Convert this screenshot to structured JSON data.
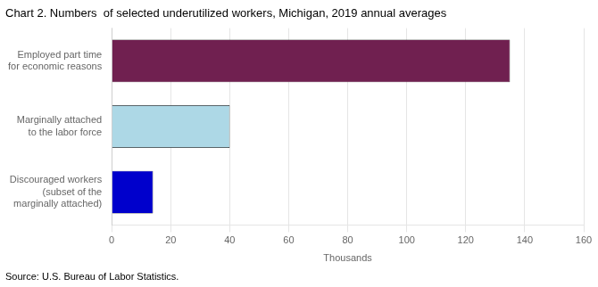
{
  "chart_data": {
    "type": "bar",
    "orientation": "horizontal",
    "title": "Chart 2. Numbers  of selected underutilized workers, Michigan, 2019 annual averages",
    "categories": [
      "Discouraged workers\n(subset of the\nmarginally attached)",
      "Marginally attached\nto the labor force",
      "Employed part time\nfor economic reasons"
    ],
    "values": [
      14,
      40,
      135
    ],
    "colors": [
      "#0000cc",
      "#add8e6",
      "#702050"
    ],
    "xlim": [
      0,
      160
    ],
    "xticks": [
      0,
      20,
      40,
      60,
      80,
      100,
      120,
      140,
      160
    ],
    "xlabel": "Thousands",
    "source": "Source: U.S. Bureau of Labor Statistics.",
    "grid": true
  }
}
